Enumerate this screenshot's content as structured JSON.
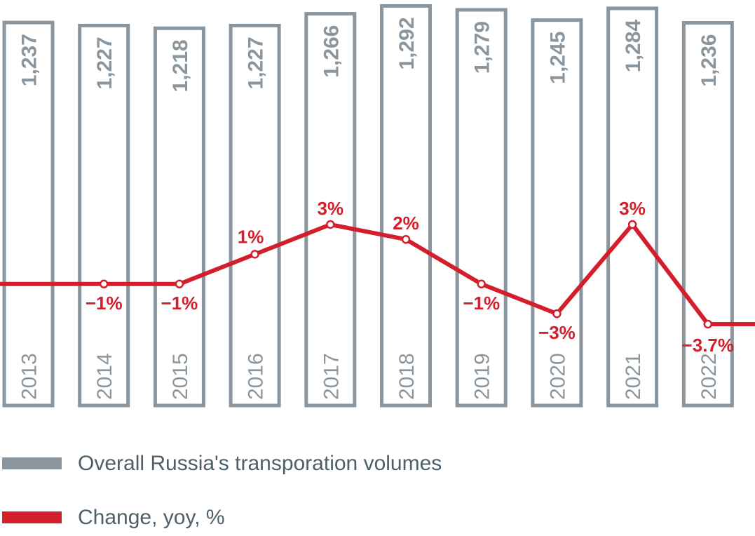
{
  "chart_data": {
    "type": "bar",
    "categories": [
      "2013",
      "2014",
      "2015",
      "2016",
      "2017",
      "2018",
      "2019",
      "2020",
      "2021",
      "2022"
    ],
    "series": [
      {
        "name": "Overall Russia's transporation volumes",
        "type": "bar",
        "values": [
          1237,
          1227,
          1218,
          1227,
          1266,
          1292,
          1279,
          1245,
          1284,
          1236
        ],
        "labels": [
          "1,237",
          "1,227",
          "1,218",
          "1,227",
          "1,266",
          "1,292",
          "1,279",
          "1,245",
          "1,284",
          "1,236"
        ],
        "color": "#8a959d"
      },
      {
        "name": "Change, yoy, %",
        "type": "line",
        "values": [
          -1,
          -1,
          -1,
          1,
          3,
          2,
          -1,
          -3,
          3,
          -3.7
        ],
        "labels": [
          "",
          "−1%",
          "−1%",
          "1%",
          "3%",
          "2%",
          "−1%",
          "−3%",
          "3%",
          "−3.7%"
        ],
        "color": "#d21f2b"
      }
    ],
    "y2lim": [
      -3.7,
      3
    ],
    "legend": "bottom-left",
    "grid": false
  },
  "legend": {
    "items": [
      {
        "label": "Overall Russia's transporation volumes",
        "color": "#8a959d"
      },
      {
        "label": "Change, yoy, %",
        "color": "#d21f2b"
      }
    ]
  }
}
